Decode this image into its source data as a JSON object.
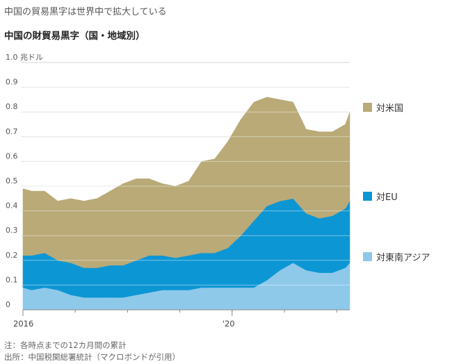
{
  "header": {
    "headline": "中国の貿易黒字は世界中で拡大している",
    "subtitle": "中国の財貿易黒字（国・地域別）"
  },
  "notes": {
    "note": "注：各時点までの12カ月間の累計",
    "source": "出所：中国税関総署統計（マクロボンドが引用）"
  },
  "chart_data": {
    "type": "area",
    "stacked": true,
    "unit_label": "1.0 兆ドル",
    "ylim": [
      0,
      1.0
    ],
    "yticks": [
      "0",
      "0.1",
      "0.2",
      "0.3",
      "0.4",
      "0.5",
      "0.6",
      "0.7",
      "0.8",
      "0.9"
    ],
    "xlim": [
      "2016-01",
      "2022-04"
    ],
    "xticks": [
      {
        "label": "2016",
        "date": "2016-01"
      },
      {
        "label": "'20",
        "date": "2020-01"
      }
    ],
    "grid": true,
    "legend": "right, labels beside each band",
    "x": [
      "2016-01",
      "2016-03",
      "2016-06",
      "2016-09",
      "2016-12",
      "2017-03",
      "2017-06",
      "2017-09",
      "2017-12",
      "2018-03",
      "2018-06",
      "2018-09",
      "2018-12",
      "2019-03",
      "2019-06",
      "2019-09",
      "2019-12",
      "2020-03",
      "2020-06",
      "2020-09",
      "2020-12",
      "2021-03",
      "2021-06",
      "2021-09",
      "2021-12",
      "2022-03",
      "2022-04"
    ],
    "series": [
      {
        "name": "対東南アジア",
        "color": "#8ec9ea",
        "values": [
          0.09,
          0.08,
          0.09,
          0.08,
          0.06,
          0.05,
          0.05,
          0.05,
          0.05,
          0.06,
          0.07,
          0.08,
          0.08,
          0.08,
          0.09,
          0.09,
          0.09,
          0.09,
          0.09,
          0.12,
          0.16,
          0.19,
          0.16,
          0.15,
          0.15,
          0.17,
          0.19
        ]
      },
      {
        "name": "対EU",
        "color": "#0d96d4",
        "values": [
          0.13,
          0.14,
          0.14,
          0.12,
          0.13,
          0.12,
          0.12,
          0.13,
          0.13,
          0.14,
          0.15,
          0.14,
          0.13,
          0.14,
          0.14,
          0.14,
          0.16,
          0.21,
          0.27,
          0.3,
          0.28,
          0.26,
          0.23,
          0.22,
          0.23,
          0.24,
          0.25
        ]
      },
      {
        "name": "対米国",
        "color": "#b9aa78",
        "values": [
          0.27,
          0.26,
          0.25,
          0.24,
          0.26,
          0.27,
          0.28,
          0.3,
          0.33,
          0.33,
          0.31,
          0.29,
          0.29,
          0.3,
          0.37,
          0.38,
          0.43,
          0.47,
          0.48,
          0.44,
          0.41,
          0.39,
          0.34,
          0.35,
          0.34,
          0.34,
          0.36
        ]
      }
    ]
  }
}
